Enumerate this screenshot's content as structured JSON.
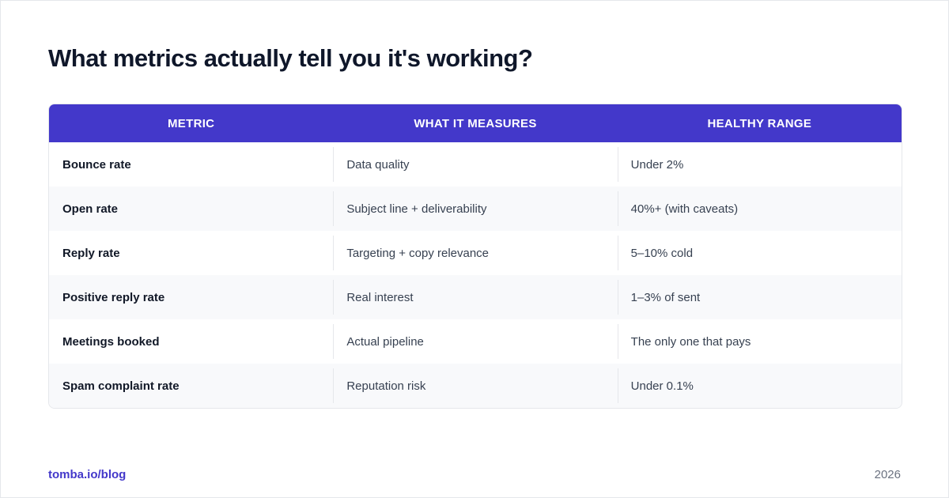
{
  "title": "What metrics actually tell you it's working?",
  "table": {
    "headers": [
      "METRIC",
      "WHAT IT MEASURES",
      "HEALTHY RANGE"
    ],
    "rows": [
      [
        "Bounce rate",
        "Data quality",
        "Under 2%"
      ],
      [
        "Open rate",
        "Subject line + deliverability",
        "40%+ (with caveats)"
      ],
      [
        "Reply rate",
        "Targeting + copy relevance",
        "5–10% cold"
      ],
      [
        "Positive reply rate",
        "Real interest",
        "1–3% of sent"
      ],
      [
        "Meetings booked",
        "Actual pipeline",
        "The only one that pays"
      ],
      [
        "Spam complaint rate",
        "Reputation risk",
        "Under 0.1%"
      ]
    ]
  },
  "footer": {
    "link": "tomba.io/blog",
    "year": "2026"
  },
  "colors": {
    "header_bg": "#4338ca",
    "accent_text": "#4338ca",
    "title_text": "#0f172a",
    "alt_row_bg": "#f8f9fb"
  }
}
